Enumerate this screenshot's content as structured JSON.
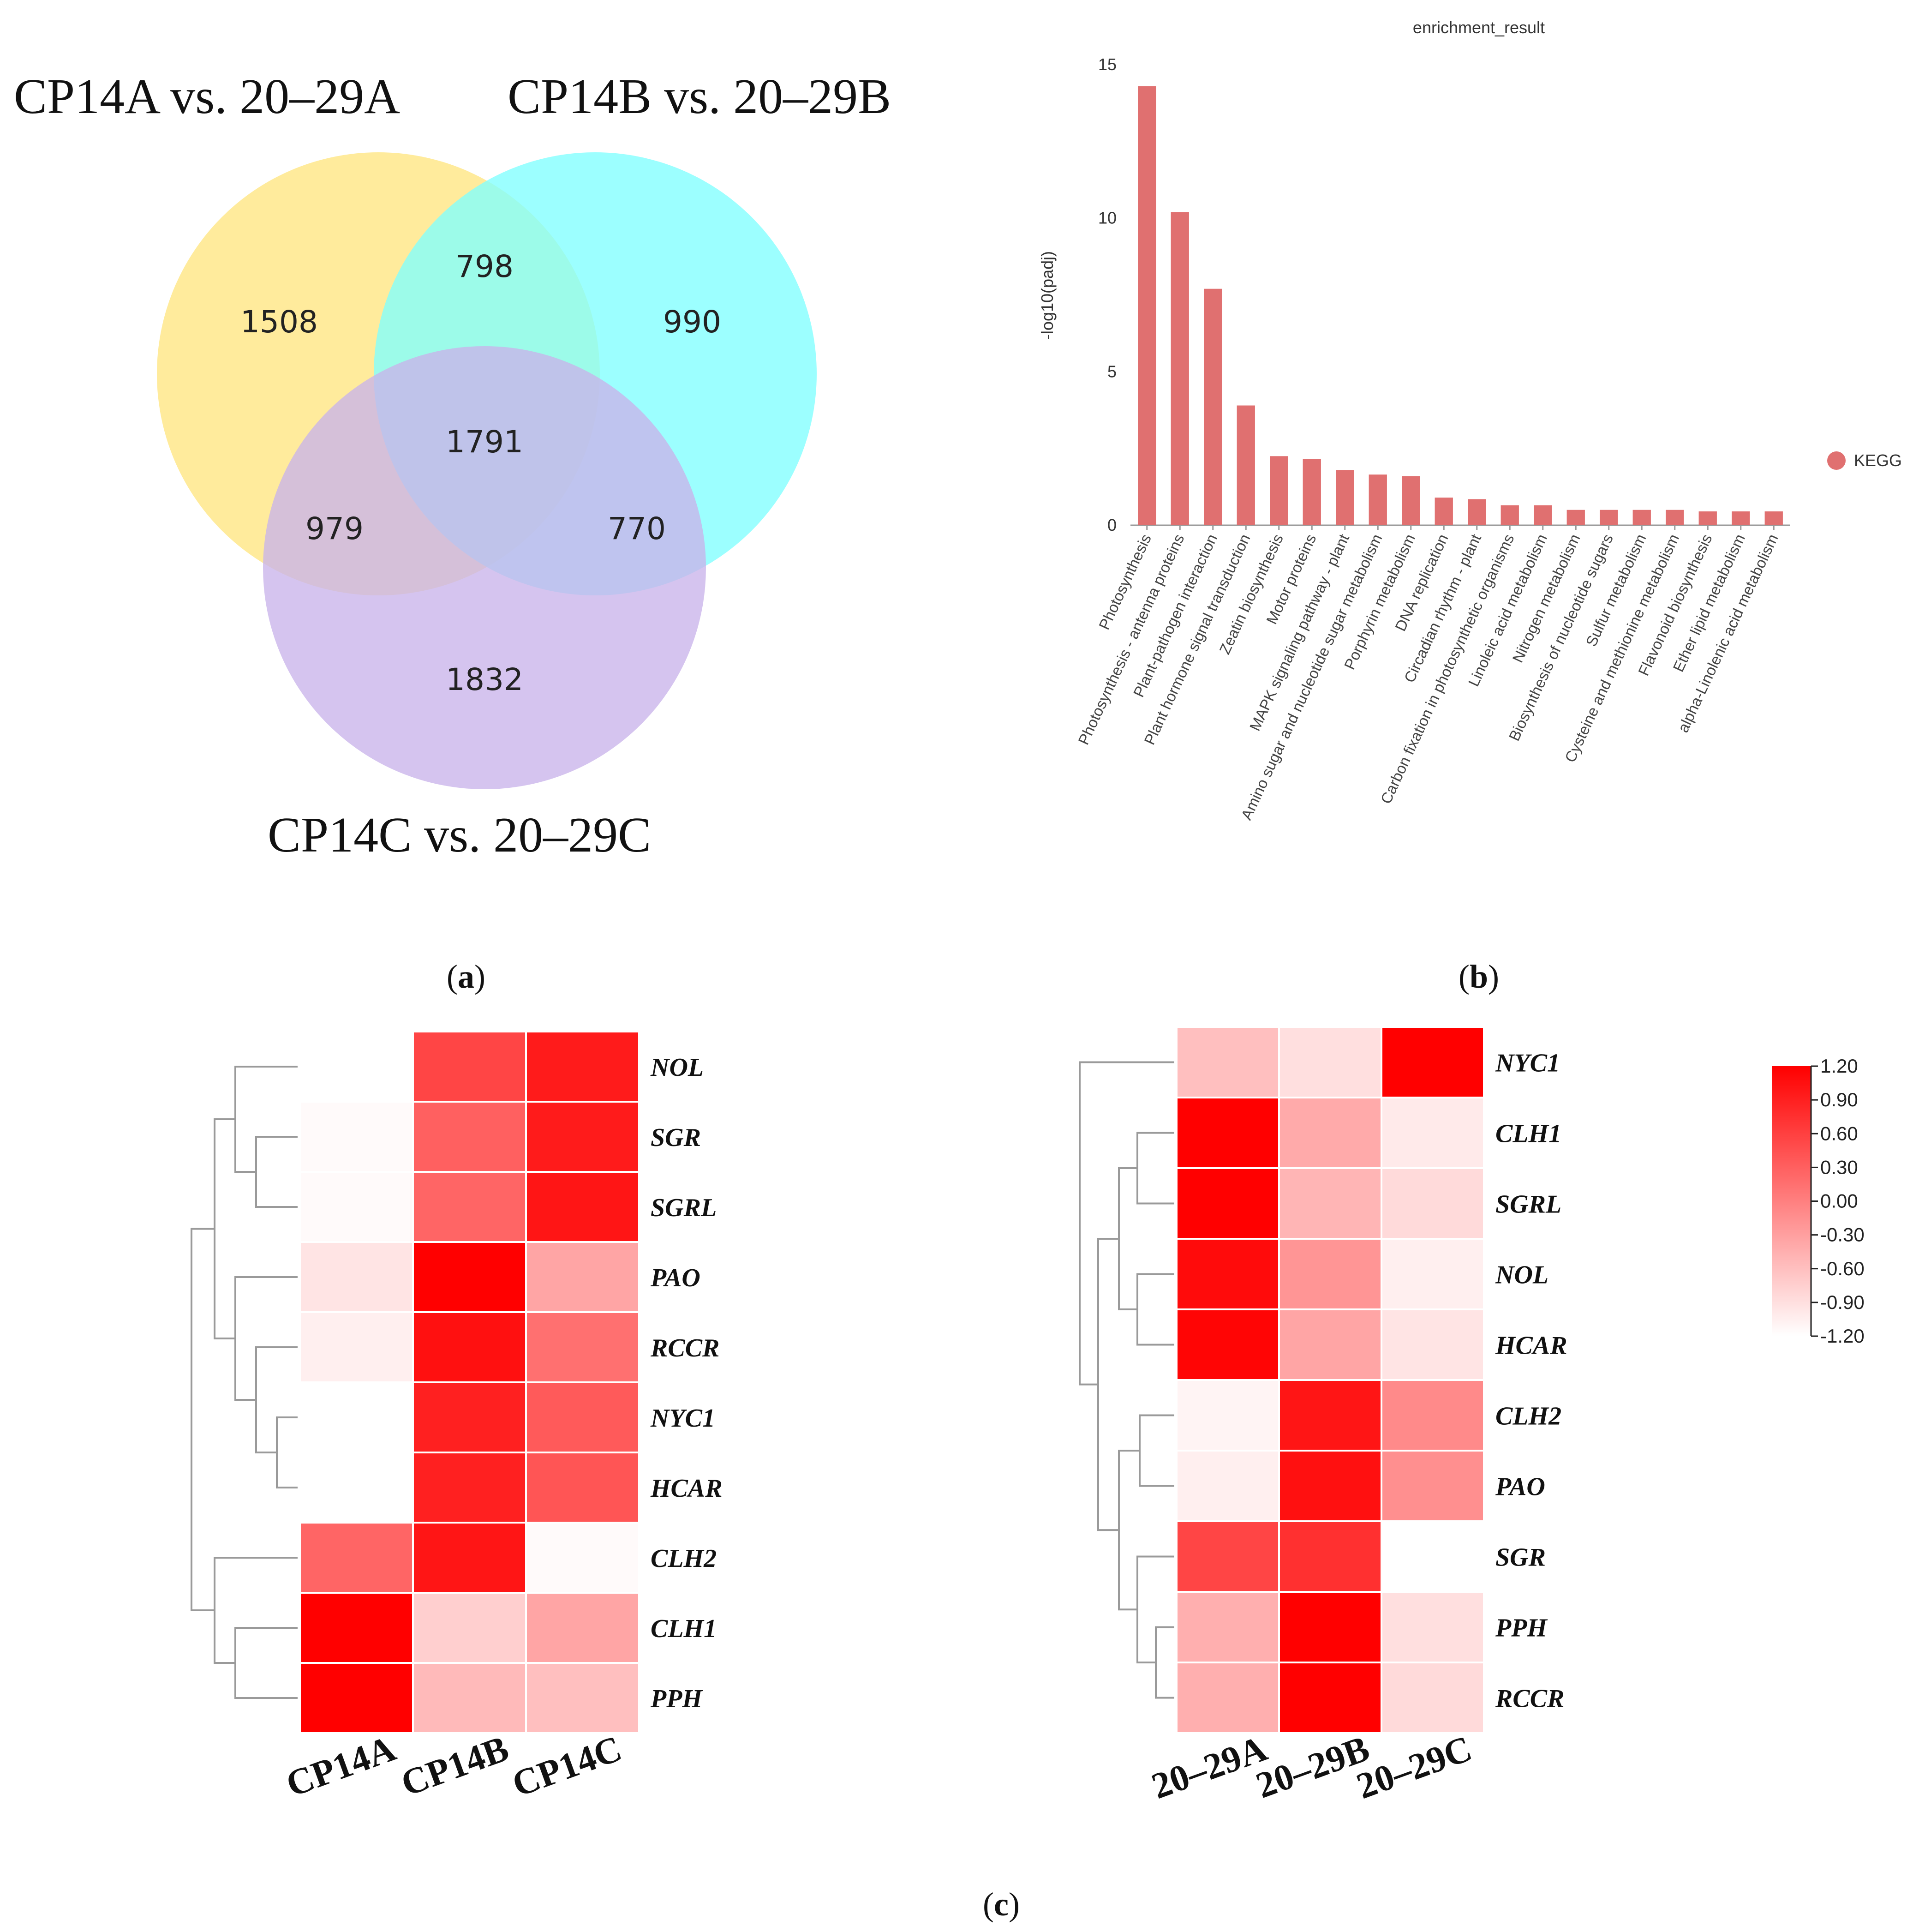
{
  "panels": {
    "a_label": "a",
    "b_label": "b",
    "c_label": "c"
  },
  "venn": {
    "sets": [
      {
        "name": "CP14A vs. 20–29A",
        "color": "#FFE680"
      },
      {
        "name": "CP14B vs. 20–29B",
        "color": "#80FFFF"
      },
      {
        "name": "CP14C vs. 20–29C",
        "color": "#C9B3EA"
      }
    ],
    "regions": {
      "A_only": "1508",
      "B_only": "990",
      "C_only": "1832",
      "AB": "798",
      "AC": "979",
      "BC": "770",
      "ABC": "1791"
    }
  },
  "chart_data": [
    {
      "type": "bar",
      "title": "enrichment_result",
      "ylabel": "-log10(padj)",
      "ylim": [
        0,
        15
      ],
      "yticks": [
        "0",
        "5",
        "10",
        "15"
      ],
      "legend": {
        "label": "KEGG",
        "position": "right",
        "color": "#E07070"
      },
      "categories": [
        "Photosynthesis",
        "Photosynthesis - antenna proteins",
        "Plant-pathogen interaction",
        "Plant hormone signal transduction",
        "Zeatin biosynthesis",
        "Motor proteins",
        "MAPK signaling pathway - plant",
        "Amino sugar and nucleotide sugar metabolism",
        "Porphyrin metabolism",
        "DNA replication",
        "Circadian rhythm - plant",
        "Carbon fixation in photosynthetic organisms",
        "Linoleic acid metabolism",
        "Nitrogen metabolism",
        "Biosynthesis of nucleotide sugars",
        "Sulfur metabolism",
        "Cysteine and methionine metabolism",
        "Flavonoid biosynthesis",
        "Ether lipid metabolism",
        "alpha-Linolenic acid metabolism"
      ],
      "values": [
        14.3,
        10.2,
        7.7,
        3.9,
        2.25,
        2.15,
        1.8,
        1.65,
        1.6,
        0.9,
        0.85,
        0.65,
        0.65,
        0.5,
        0.5,
        0.5,
        0.5,
        0.45,
        0.45,
        0.45
      ]
    },
    {
      "type": "heatmap",
      "columns": [
        "CP14A",
        "CP14B",
        "CP14C"
      ],
      "rows": [
        "NOL",
        "SGR",
        "SGRL",
        "PAO",
        "RCCR",
        "NYC1",
        "HCAR",
        "CLH2",
        "CLH1",
        "PPH"
      ],
      "values": [
        [
          -1.2,
          0.55,
          0.95
        ],
        [
          -1.15,
          0.3,
          0.95
        ],
        [
          -1.15,
          0.25,
          1.0
        ],
        [
          -0.95,
          1.2,
          -0.35
        ],
        [
          -1.05,
          1.05,
          0.15
        ],
        [
          -1.2,
          0.9,
          0.35
        ],
        [
          -1.2,
          0.9,
          0.4
        ],
        [
          0.25,
          1.0,
          -1.15
        ],
        [
          1.2,
          -0.75,
          -0.35
        ],
        [
          1.2,
          -0.55,
          -0.6
        ]
      ]
    },
    {
      "type": "heatmap",
      "columns": [
        "20–29A",
        "20–29B",
        "20–29C"
      ],
      "rows": [
        "NYC1",
        "CLH1",
        "SGRL",
        "NOL",
        "HCAR",
        "CLH2",
        "PAO",
        "SGR",
        "PPH",
        "RCCR"
      ],
      "values": [
        [
          -0.6,
          -0.9,
          1.2
        ],
        [
          1.2,
          -0.4,
          -1.0
        ],
        [
          1.2,
          -0.5,
          -0.85
        ],
        [
          1.1,
          -0.2,
          -1.05
        ],
        [
          1.15,
          -0.35,
          -0.95
        ],
        [
          -1.1,
          1.0,
          -0.1
        ],
        [
          -1.05,
          1.05,
          -0.15
        ],
        [
          0.55,
          0.75,
          -1.2
        ],
        [
          -0.45,
          1.2,
          -0.9
        ],
        [
          -0.45,
          1.2,
          -0.85
        ]
      ]
    }
  ],
  "color_scale": {
    "ticks": [
      "1.20",
      "0.90",
      "0.60",
      "0.30",
      "0.00",
      "-0.30",
      "-0.60",
      "-0.90",
      "-1.20"
    ],
    "min": -1.2,
    "max": 1.2,
    "low_color": "#FFFFFF",
    "high_color": "#FF0000"
  }
}
